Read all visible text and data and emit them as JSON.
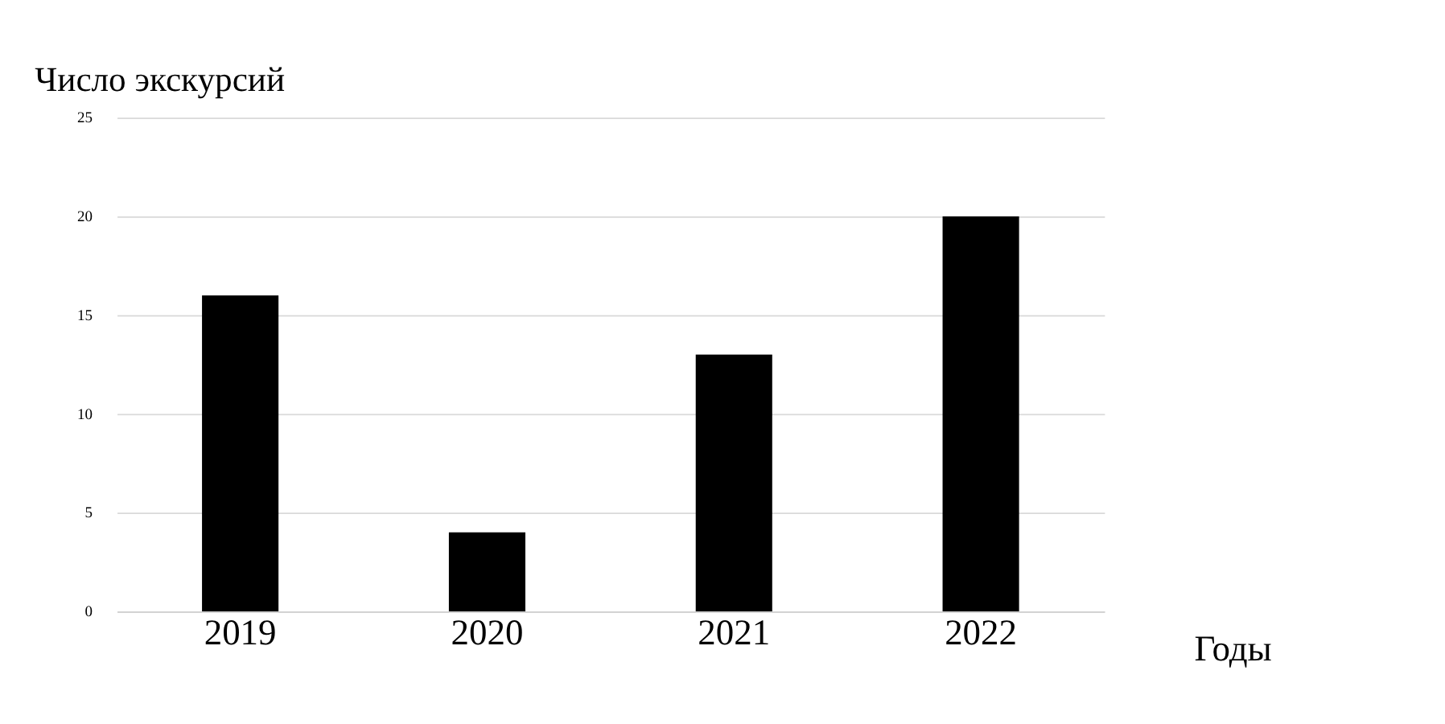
{
  "chart_data": {
    "type": "bar",
    "title": "Число экскурсий",
    "xlabel": "Годы",
    "categories": [
      "2019",
      "2020",
      "2021",
      "2022"
    ],
    "values": [
      16,
      4,
      13,
      20
    ],
    "color": "#000000",
    "ylim": [
      0,
      25
    ],
    "yticks": [
      0,
      5,
      10,
      15,
      20,
      25
    ],
    "grid": "y"
  }
}
